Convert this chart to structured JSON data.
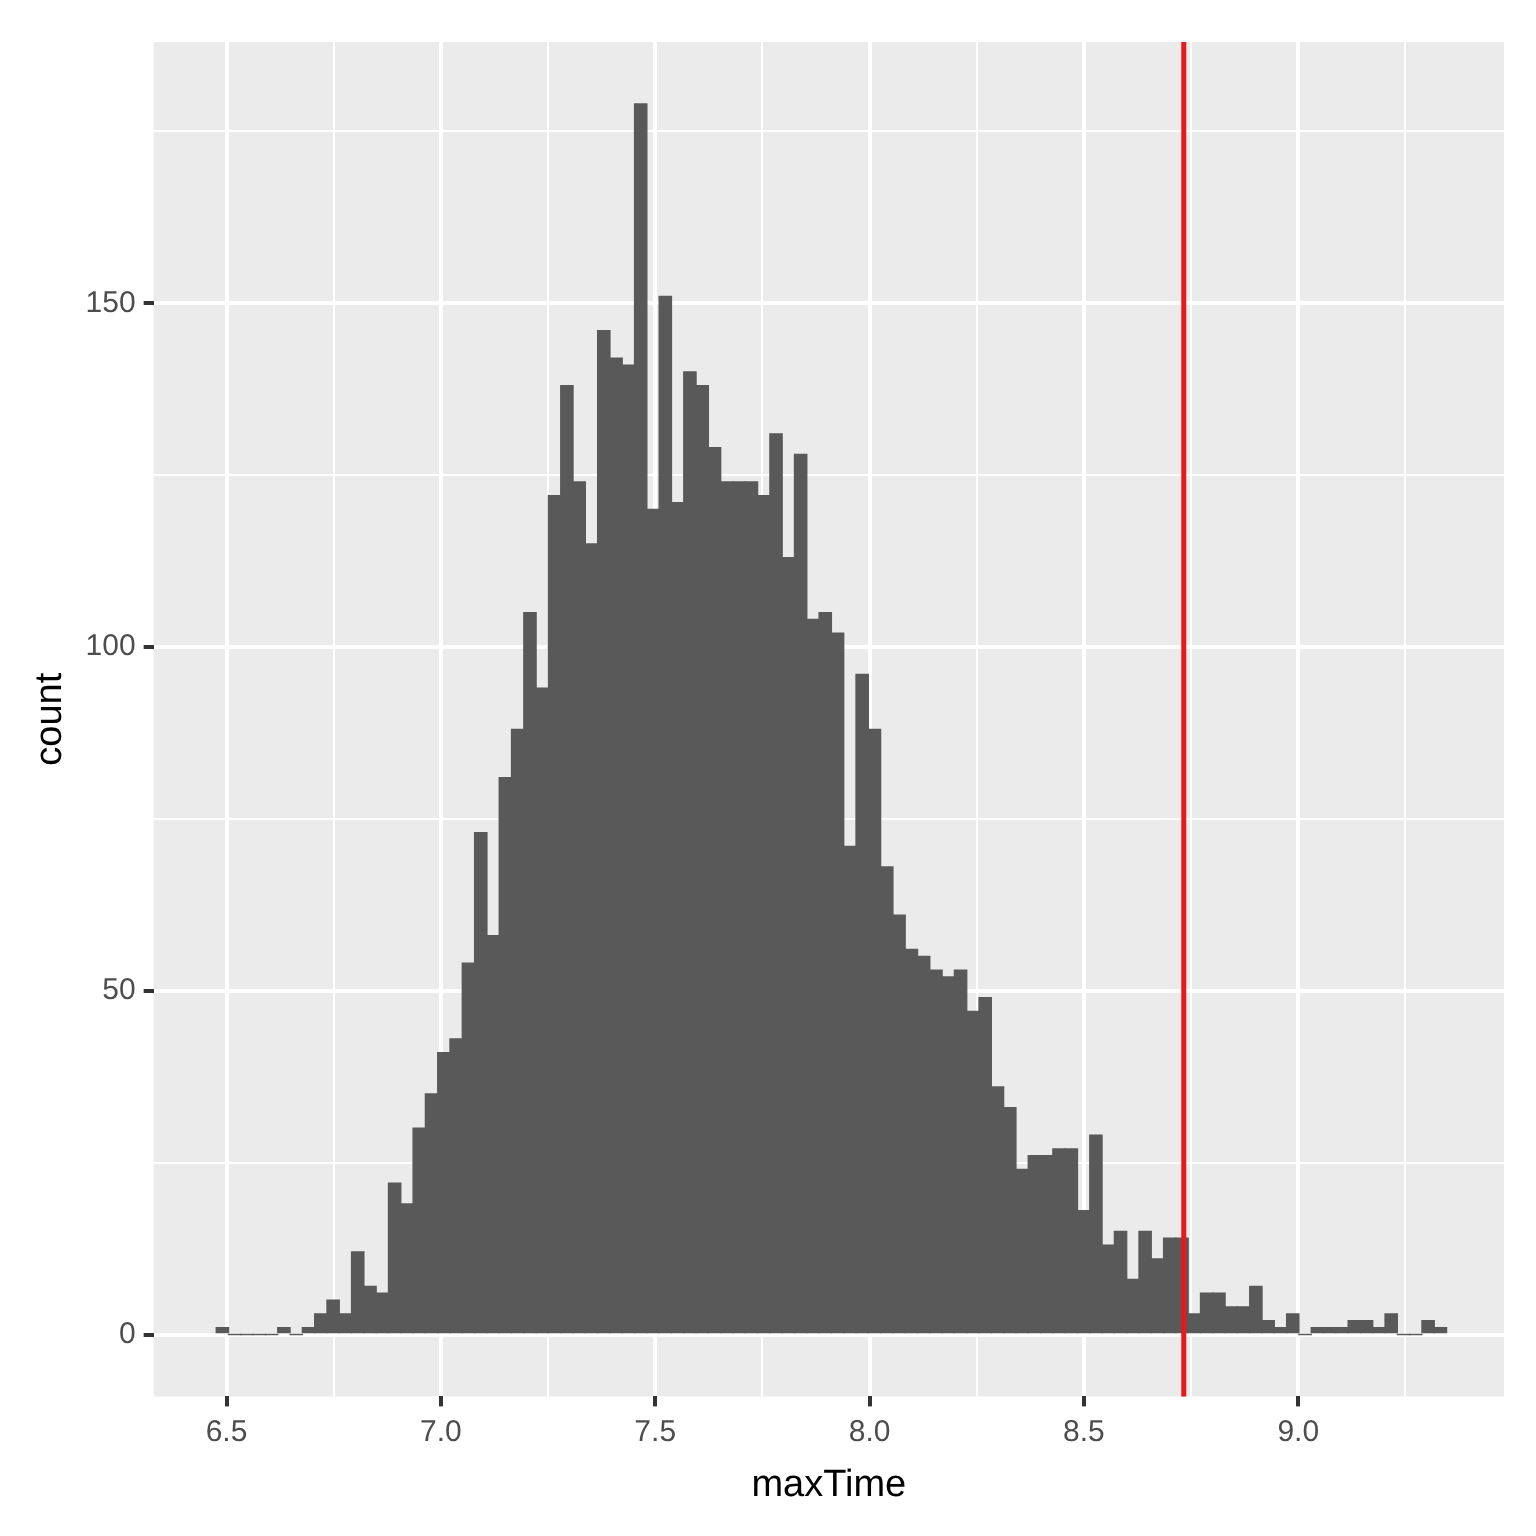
{
  "chart_data": {
    "type": "histogram",
    "xlabel": "maxTime",
    "ylabel": "count",
    "bins": [
      6.476,
      6.5047,
      6.5334,
      6.5621,
      6.5908,
      6.6195,
      6.6482,
      6.6769,
      6.7056,
      6.7343,
      6.763,
      6.7917,
      6.8204,
      6.8491,
      6.8778,
      6.9065,
      6.9352,
      6.9639,
      6.9926,
      7.0213,
      7.05,
      7.0787,
      7.1074,
      7.1361,
      7.1648,
      7.1935,
      7.2222,
      7.2509,
      7.2796,
      7.3083,
      7.337,
      7.3657,
      7.3944,
      7.4231,
      7.4518,
      7.4805,
      7.5092,
      7.5379,
      7.5666,
      7.5953,
      7.624,
      7.6527,
      7.6814,
      7.7101,
      7.7388,
      7.7675,
      7.7962,
      7.8249,
      7.8536,
      7.8823,
      7.911,
      7.9397,
      7.9684,
      7.9971,
      8.0258,
      8.0545,
      8.0832,
      8.1119,
      8.1406,
      8.1693,
      8.198,
      8.2267,
      8.2554,
      8.2841,
      8.3128,
      8.3415,
      8.3702,
      8.3989,
      8.4276,
      8.4563,
      8.485,
      8.5137,
      8.5424,
      8.5711,
      8.5998,
      8.6285,
      8.6572,
      8.6859,
      8.7146,
      8.7433,
      8.772,
      8.8007,
      8.8294,
      8.8581,
      8.8868,
      8.9155,
      8.9442,
      8.9729,
      9.0016,
      9.0303,
      9.059,
      9.0877,
      9.1164,
      9.1451,
      9.1738,
      9.2025,
      9.2312,
      9.2599,
      9.2886,
      9.3173,
      9.346
    ],
    "values": [
      1,
      0,
      0,
      0,
      0,
      1,
      0,
      1,
      3,
      5,
      3,
      12,
      7,
      6,
      22,
      19,
      30,
      35,
      41,
      43,
      54,
      73,
      58,
      81,
      88,
      105,
      94,
      122,
      138,
      124,
      115,
      146,
      142,
      141,
      179,
      120,
      151,
      121,
      140,
      138,
      129,
      124,
      124,
      124,
      122,
      131,
      113,
      128,
      104,
      105,
      102,
      71,
      96,
      88,
      68,
      61,
      56,
      55,
      53,
      52,
      53,
      47,
      49,
      36,
      33,
      24,
      26,
      26,
      27,
      27,
      18,
      29,
      13,
      15,
      8,
      15,
      11,
      14,
      14,
      3,
      6,
      6,
      4,
      4,
      7,
      2,
      1,
      3,
      0,
      1,
      1,
      1,
      2,
      2,
      1,
      3,
      0,
      0,
      2,
      1
    ],
    "color": "#595959",
    "xlim": [
      6.33,
      9.48
    ],
    "ylim": [
      -9,
      188
    ],
    "xticks": [
      6.5,
      {
        "value": 6.75,
        "label": null
      },
      {
        "value": 7,
        "label": "7.0"
      },
      {
        "value": 7.25,
        "label": null
      },
      7.5,
      {
        "value": 7.75,
        "label": null
      },
      {
        "value": 8,
        "label": "8.0"
      },
      {
        "value": 8.25,
        "label": null
      },
      8.5,
      {
        "value": 8.75,
        "label": null
      },
      {
        "value": 9,
        "label": "9.0"
      },
      {
        "value": 9.25,
        "label": null
      }
    ],
    "yticks": [
      0,
      {
        "value": 25,
        "label": null
      },
      50,
      {
        "value": 75,
        "label": null
      },
      100,
      {
        "value": 125,
        "label": null
      },
      150,
      {
        "value": 175,
        "label": null
      }
    ],
    "grid": true,
    "ref_lines": [
      {
        "axis": "x",
        "value": 8.733,
        "color": "#e41a1c"
      }
    ]
  }
}
